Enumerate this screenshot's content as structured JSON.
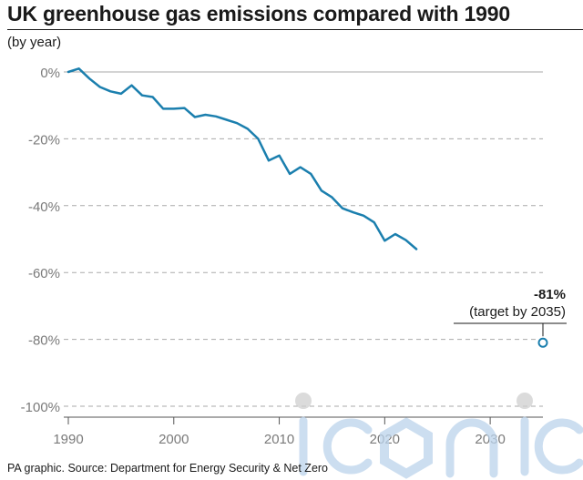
{
  "title": "UK greenhouse gas emissions compared with 1990",
  "subtitle": "(by year)",
  "source": "PA graphic. Source: Department for Energy Security & Net Zero",
  "watermark": "iconic",
  "colors": {
    "line": "#1b7fae",
    "grid": "#aaaaaa",
    "axis": "#555555",
    "tick_text": "#7a7a7a",
    "watermark": "#bcd4ec"
  },
  "chart_data": {
    "type": "line",
    "title": "UK greenhouse gas emissions compared with 1990",
    "subtitle": "(by year)",
    "xlim": [
      1990,
      2035
    ],
    "ylim": [
      -100,
      0
    ],
    "x_ticks": [
      1990,
      2000,
      2010,
      2020,
      2030
    ],
    "x_tick_labels": [
      "1990",
      "2000",
      "2010",
      "2020",
      "2030"
    ],
    "y_ticks": [
      0,
      -20,
      -40,
      -60,
      -80,
      -100
    ],
    "y_tick_labels": [
      "0%",
      "-20%",
      "-40%",
      "-60%",
      "-80%",
      "-100%"
    ],
    "grid": "horizontal dashed",
    "series": [
      {
        "x": [
          1990,
          1991,
          1992,
          1993,
          1994,
          1995,
          1996,
          1997,
          1998,
          1999,
          2000,
          2001,
          2002,
          2003,
          2004,
          2005,
          2006,
          2007,
          2008,
          2009,
          2010,
          2011,
          2012,
          2013,
          2014,
          2015,
          2016,
          2017,
          2018,
          2019,
          2020,
          2021,
          2022,
          2023
        ],
        "values": [
          0,
          1,
          -2,
          -4.5,
          -5.8,
          -6.5,
          -4,
          -7,
          -7.5,
          -11,
          -11,
          -10.8,
          -13.5,
          -12.8,
          -13.3,
          -14.3,
          -15.3,
          -17,
          -20,
          -26.5,
          -25,
          -30.5,
          -28.5,
          -30.5,
          -35.5,
          -37.5,
          -40.8,
          -42,
          -43,
          -45,
          -50.5,
          -48.5,
          -50.3,
          -53
        ]
      }
    ],
    "target": {
      "x": 2035,
      "value": -81,
      "label": "-81%",
      "note": "(target by 2035)"
    }
  }
}
